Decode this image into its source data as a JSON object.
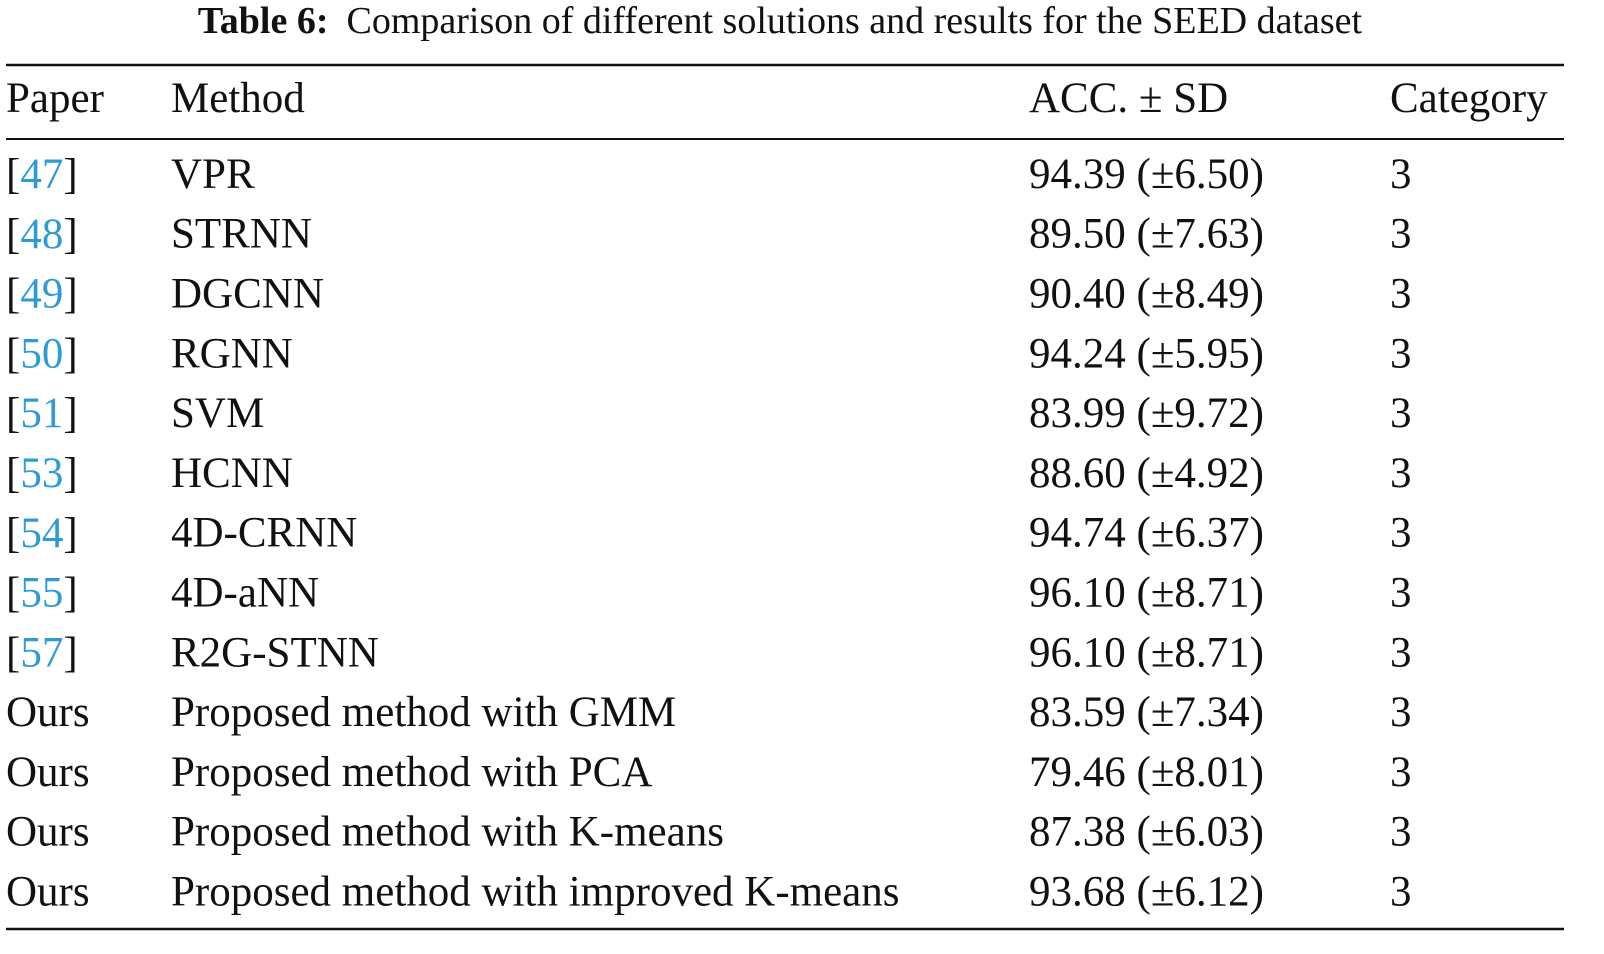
{
  "table": {
    "title": {
      "label": "Table 6:",
      "text": "Comparison of different solutions and results for the SEED dataset"
    },
    "header": [
      "Paper",
      "Method",
      "ACC. ± SD",
      "Category"
    ],
    "rows": [
      [
        "[47]",
        "VPR",
        "94.39 (±6.50)",
        "3"
      ],
      [
        "[48]",
        "STRNN",
        "89.50 (±7.63)",
        "3"
      ],
      [
        "[49]",
        "DGCNN",
        "90.40 (±8.49)",
        "3"
      ],
      [
        "[50]",
        "RGNN",
        "94.24 (±5.95)",
        "3"
      ],
      [
        "[51]",
        "SVM",
        "83.99 (±9.72)",
        "3"
      ],
      [
        "[53]",
        "HCNN",
        "88.60 (±4.92)",
        "3"
      ],
      [
        "[54]",
        "4D-CRNN",
        "94.74 (±6.37)",
        "3"
      ],
      [
        "[55]",
        "4D-aNN",
        "96.10 (±8.71)",
        "3"
      ],
      [
        "[57]",
        "R2G-STNN",
        "96.10 (±8.71)",
        "3"
      ],
      [
        "Ours",
        "Proposed method with GMM",
        "83.59 (±7.34)",
        "3"
      ],
      [
        "Ours",
        "Proposed method with PCA",
        "79.46 (±8.01)",
        "3"
      ],
      [
        "Ours",
        "Proposed method with K-means",
        "87.38 (±6.03)",
        "3"
      ],
      [
        "Ours",
        "Proposed method with improved K-means",
        "93.68 (±6.12)",
        "3"
      ]
    ]
  }
}
